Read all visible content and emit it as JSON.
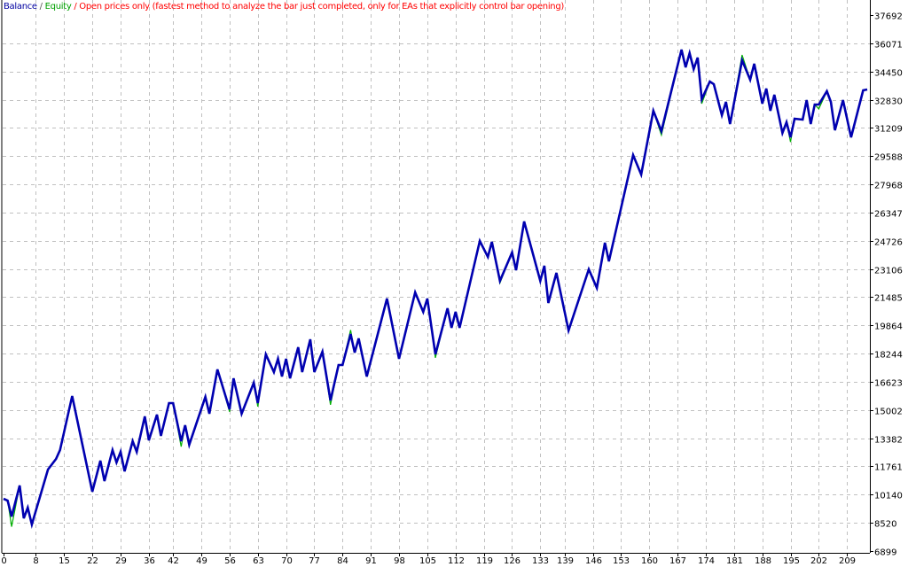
{
  "chart_data": {
    "type": "line",
    "title_parts": {
      "balance_label": "Balance",
      "separator": " / ",
      "equity_label": "Equity",
      "mode_text": " / Open prices only (fastest method to analyze the bar just completed, only for EAs that explicitly control bar opening)"
    },
    "colors": {
      "balance": "#0000b0",
      "equity": "#00b000",
      "mode_text": "#ff0000",
      "grid": "#c0c0c0",
      "axis": "#000000"
    },
    "grid": true,
    "xlim": [
      0,
      214
    ],
    "ylim": [
      6899,
      37692
    ],
    "y_ticks": [
      "37692",
      "36071",
      "34450",
      "32830",
      "31209",
      "29588",
      "27968",
      "26347",
      "24726",
      "23106",
      "21485",
      "19864",
      "18244",
      "16623",
      "15002",
      "13382",
      "11761",
      "10140",
      "8520",
      "6899"
    ],
    "x_ticks": [
      "0",
      "8",
      "15",
      "22",
      "29",
      "36",
      "42",
      "49",
      "56",
      "63",
      "70",
      "77",
      "84",
      "91",
      "98",
      "105",
      "112",
      "119",
      "126",
      "133",
      "139",
      "146",
      "153",
      "160",
      "167",
      "174",
      "181",
      "188",
      "195",
      "202",
      "209"
    ],
    "series": [
      {
        "name": "Balance",
        "points": [
          [
            0,
            9900
          ],
          [
            1,
            9800
          ],
          [
            2,
            8883
          ],
          [
            4,
            10664
          ],
          [
            5,
            8781
          ],
          [
            6,
            9392
          ],
          [
            7,
            8424
          ],
          [
            11,
            11580
          ],
          [
            13,
            12191
          ],
          [
            14,
            12700
          ],
          [
            17,
            15805
          ],
          [
            22,
            10308
          ],
          [
            24,
            12089
          ],
          [
            25,
            10919
          ],
          [
            27,
            12700
          ],
          [
            28,
            11987
          ],
          [
            29,
            12598
          ],
          [
            30,
            11478
          ],
          [
            32,
            13209
          ],
          [
            33,
            12598
          ],
          [
            35,
            14634
          ],
          [
            36,
            13260
          ],
          [
            38,
            14736
          ],
          [
            39,
            13514
          ],
          [
            41,
            15398
          ],
          [
            42,
            15398
          ],
          [
            44,
            13209
          ],
          [
            45,
            14125
          ],
          [
            46,
            13005
          ],
          [
            50,
            15754
          ],
          [
            51,
            14787
          ],
          [
            53,
            17332
          ],
          [
            56,
            15041
          ],
          [
            57,
            16823
          ],
          [
            59,
            14787
          ],
          [
            62,
            16568
          ],
          [
            63,
            15398
          ],
          [
            65,
            18197
          ],
          [
            67,
            17179
          ],
          [
            68,
            17943
          ],
          [
            69,
            16925
          ],
          [
            70,
            17943
          ],
          [
            71,
            16823
          ],
          [
            73,
            18604
          ],
          [
            74,
            17179
          ],
          [
            76,
            19063
          ],
          [
            77,
            17179
          ],
          [
            79,
            18350
          ],
          [
            81,
            15550
          ],
          [
            83,
            17586
          ],
          [
            84,
            17586
          ],
          [
            86,
            19368
          ],
          [
            87,
            18299
          ],
          [
            88,
            19113
          ],
          [
            90,
            16925
          ],
          [
            95,
            21404
          ],
          [
            98,
            17943
          ],
          [
            102,
            21760
          ],
          [
            104,
            20640
          ],
          [
            105,
            21404
          ],
          [
            107,
            18197
          ],
          [
            110,
            20844
          ],
          [
            111,
            19724
          ],
          [
            112,
            20640
          ],
          [
            113,
            19724
          ],
          [
            118,
            24712
          ],
          [
            120,
            23796
          ],
          [
            121,
            24662
          ],
          [
            123,
            22422
          ],
          [
            126,
            24051
          ],
          [
            127,
            23033
          ],
          [
            129,
            25832
          ],
          [
            133,
            22422
          ],
          [
            134,
            23287
          ],
          [
            135,
            21149
          ],
          [
            137,
            22880
          ],
          [
            140,
            19572
          ],
          [
            145,
            23084
          ],
          [
            147,
            22015
          ],
          [
            149,
            24611
          ],
          [
            150,
            23542
          ],
          [
            156,
            29650
          ],
          [
            158,
            28530
          ],
          [
            161,
            32195
          ],
          [
            163,
            31024
          ],
          [
            168,
            35707
          ],
          [
            169,
            34689
          ],
          [
            170,
            35503
          ],
          [
            171,
            34587
          ],
          [
            172,
            35249
          ],
          [
            173,
            32856
          ],
          [
            175,
            33874
          ],
          [
            176,
            33722
          ],
          [
            178,
            31940
          ],
          [
            179,
            32704
          ],
          [
            180,
            31431
          ],
          [
            183,
            35096
          ],
          [
            185,
            33976
          ],
          [
            186,
            34892
          ],
          [
            188,
            32602
          ],
          [
            189,
            33467
          ],
          [
            190,
            32195
          ],
          [
            191,
            33111
          ],
          [
            193,
            30922
          ],
          [
            194,
            31533
          ],
          [
            195,
            30668
          ],
          [
            196,
            31737
          ],
          [
            198,
            31686
          ],
          [
            199,
            32806
          ],
          [
            200,
            31431
          ],
          [
            201,
            32551
          ],
          [
            202,
            32551
          ],
          [
            204,
            33315
          ],
          [
            205,
            32704
          ],
          [
            206,
            31075
          ],
          [
            208,
            32806
          ],
          [
            210,
            30668
          ],
          [
            213,
            33365
          ],
          [
            214,
            33416
          ]
        ]
      },
      {
        "name": "Equity",
        "points": [
          [
            0,
            9900
          ],
          [
            1,
            9800
          ],
          [
            2,
            8300
          ],
          [
            4,
            10664
          ],
          [
            5,
            8781
          ],
          [
            6,
            9392
          ],
          [
            7,
            8424
          ],
          [
            11,
            11580
          ],
          [
            13,
            12191
          ],
          [
            14,
            12700
          ],
          [
            17,
            15805
          ],
          [
            22,
            10308
          ],
          [
            24,
            12089
          ],
          [
            25,
            10919
          ],
          [
            27,
            12700
          ],
          [
            28,
            11987
          ],
          [
            29,
            12598
          ],
          [
            30,
            11478
          ],
          [
            32,
            13209
          ],
          [
            33,
            12598
          ],
          [
            35,
            14634
          ],
          [
            36,
            13260
          ],
          [
            38,
            14736
          ],
          [
            39,
            13514
          ],
          [
            41,
            15398
          ],
          [
            42,
            15398
          ],
          [
            44,
            12900
          ],
          [
            45,
            14125
          ],
          [
            46,
            13005
          ],
          [
            50,
            15754
          ],
          [
            51,
            14787
          ],
          [
            53,
            17332
          ],
          [
            56,
            14900
          ],
          [
            57,
            16823
          ],
          [
            59,
            14787
          ],
          [
            62,
            16568
          ],
          [
            63,
            15200
          ],
          [
            65,
            18197
          ],
          [
            67,
            17179
          ],
          [
            68,
            17943
          ],
          [
            69,
            16925
          ],
          [
            70,
            17943
          ],
          [
            71,
            16823
          ],
          [
            73,
            18604
          ],
          [
            74,
            17179
          ],
          [
            76,
            19063
          ],
          [
            77,
            17179
          ],
          [
            79,
            18350
          ],
          [
            81,
            15300
          ],
          [
            83,
            17586
          ],
          [
            84,
            17586
          ],
          [
            86,
            19600
          ],
          [
            87,
            18299
          ],
          [
            88,
            19113
          ],
          [
            90,
            16925
          ],
          [
            95,
            21404
          ],
          [
            98,
            17943
          ],
          [
            102,
            21760
          ],
          [
            104,
            20640
          ],
          [
            105,
            21404
          ],
          [
            107,
            18000
          ],
          [
            110,
            20844
          ],
          [
            111,
            19724
          ],
          [
            112,
            20640
          ],
          [
            113,
            19724
          ],
          [
            118,
            24712
          ],
          [
            120,
            23796
          ],
          [
            121,
            24662
          ],
          [
            123,
            22300
          ],
          [
            126,
            24051
          ],
          [
            127,
            23033
          ],
          [
            129,
            25832
          ],
          [
            133,
            22422
          ],
          [
            134,
            23287
          ],
          [
            135,
            21149
          ],
          [
            137,
            22880
          ],
          [
            140,
            19572
          ],
          [
            145,
            23084
          ],
          [
            147,
            22015
          ],
          [
            149,
            24611
          ],
          [
            150,
            23542
          ],
          [
            156,
            29650
          ],
          [
            158,
            28530
          ],
          [
            161,
            32195
          ],
          [
            163,
            30800
          ],
          [
            168,
            35707
          ],
          [
            169,
            34689
          ],
          [
            170,
            35503
          ],
          [
            171,
            34587
          ],
          [
            172,
            35249
          ],
          [
            173,
            32600
          ],
          [
            175,
            33874
          ],
          [
            176,
            33722
          ],
          [
            178,
            31940
          ],
          [
            179,
            32704
          ],
          [
            180,
            31431
          ],
          [
            183,
            35400
          ],
          [
            185,
            33976
          ],
          [
            186,
            34892
          ],
          [
            188,
            32602
          ],
          [
            189,
            33467
          ],
          [
            190,
            32195
          ],
          [
            191,
            33111
          ],
          [
            193,
            30922
          ],
          [
            194,
            31533
          ],
          [
            195,
            30400
          ],
          [
            196,
            31737
          ],
          [
            198,
            31686
          ],
          [
            199,
            32806
          ],
          [
            200,
            31431
          ],
          [
            201,
            32551
          ],
          [
            202,
            32300
          ],
          [
            204,
            33315
          ],
          [
            205,
            32704
          ],
          [
            206,
            31075
          ],
          [
            208,
            32806
          ],
          [
            210,
            30668
          ],
          [
            213,
            33365
          ],
          [
            214,
            33416
          ]
        ]
      }
    ]
  }
}
